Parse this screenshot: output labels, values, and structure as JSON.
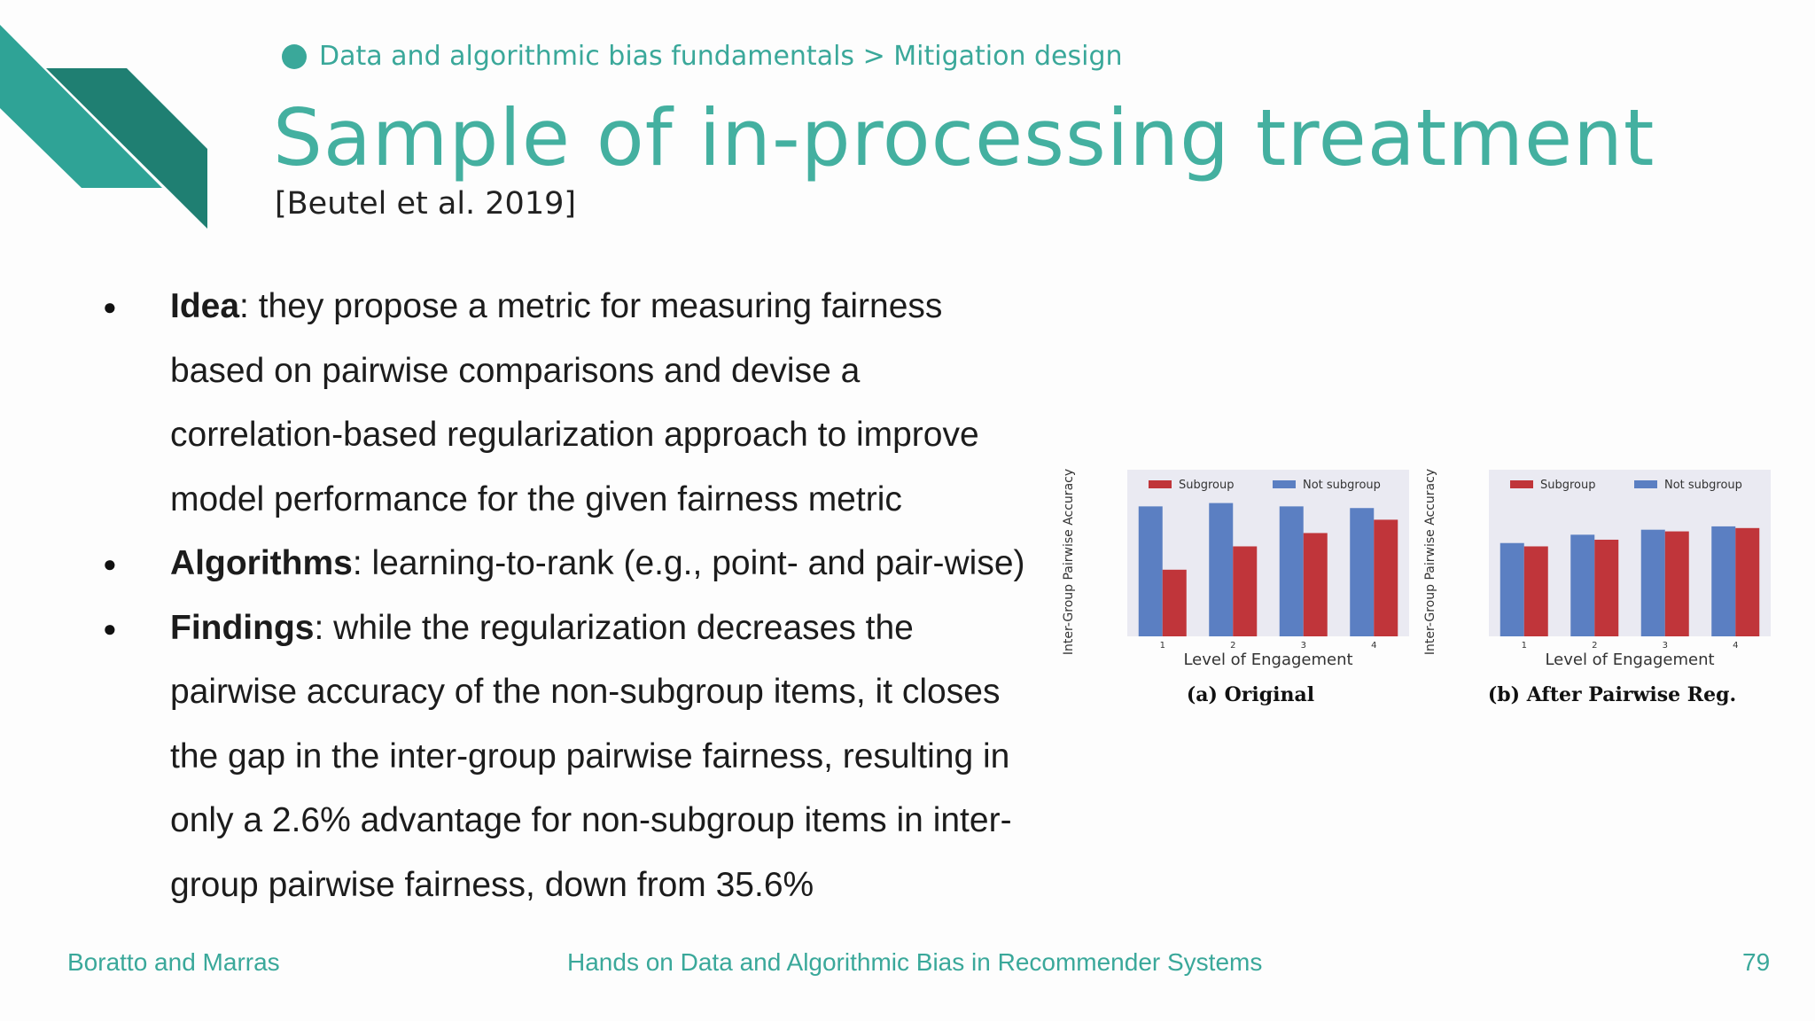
{
  "header": {
    "breadcrumb": "Data and algorithmic bias fundamentals > Mitigation design",
    "title": "Sample of in-processing treatment",
    "citation": "[Beutel et al. 2019]"
  },
  "bullets": [
    {
      "term": "Idea",
      "text": ": they propose a metric for measuring fairness based on pairwise comparisons and devise a correlation-based regularization approach to improve model performance for the given fairness metric"
    },
    {
      "term": "Algorithms",
      "text": ": learning-to-rank (e.g., point- and pair-wise)"
    },
    {
      "term": "Findings",
      "text": ": while the regularization decreases the pairwise accuracy of the non-subgroup items, it closes the gap in the inter-group pairwise fairness, resulting in only a 2.6% advantage for non-subgroup items in inter-group pairwise fairness, down from 35.6%"
    }
  ],
  "chart_data": [
    {
      "type": "bar",
      "caption": "(a) Original",
      "xlabel": "Level of Engagement",
      "ylabel": "Inter-Group Pairwise Accuracy",
      "categories": [
        "1",
        "2",
        "3",
        "4"
      ],
      "ylim": [
        0,
        1
      ],
      "legend_position": "top",
      "series": [
        {
          "name": "Subgroup",
          "color": "#c0353a",
          "values": [
            0.4,
            0.54,
            0.62,
            0.7
          ]
        },
        {
          "name": "Not subgroup",
          "color": "#5b7fc2",
          "values": [
            0.78,
            0.8,
            0.78,
            0.77
          ]
        }
      ]
    },
    {
      "type": "bar",
      "caption": "(b) After Pairwise Reg.",
      "xlabel": "Level of Engagement",
      "ylabel": "Inter-Group Pairwise Accuracy",
      "categories": [
        "1",
        "2",
        "3",
        "4"
      ],
      "ylim": [
        0,
        1
      ],
      "legend_position": "top",
      "series": [
        {
          "name": "Subgroup",
          "color": "#c0353a",
          "values": [
            0.54,
            0.58,
            0.63,
            0.65
          ]
        },
        {
          "name": "Not subgroup",
          "color": "#5b7fc2",
          "values": [
            0.56,
            0.61,
            0.64,
            0.66
          ]
        }
      ]
    }
  ],
  "footer": {
    "authors": "Boratto and Marras",
    "course": "Hands on Data and Algorithmic Bias in Recommender Systems",
    "page": "79"
  },
  "colors": {
    "accent": "#3aa89a",
    "deco_light": "#2fa396",
    "deco_dark": "#1f7f72"
  }
}
